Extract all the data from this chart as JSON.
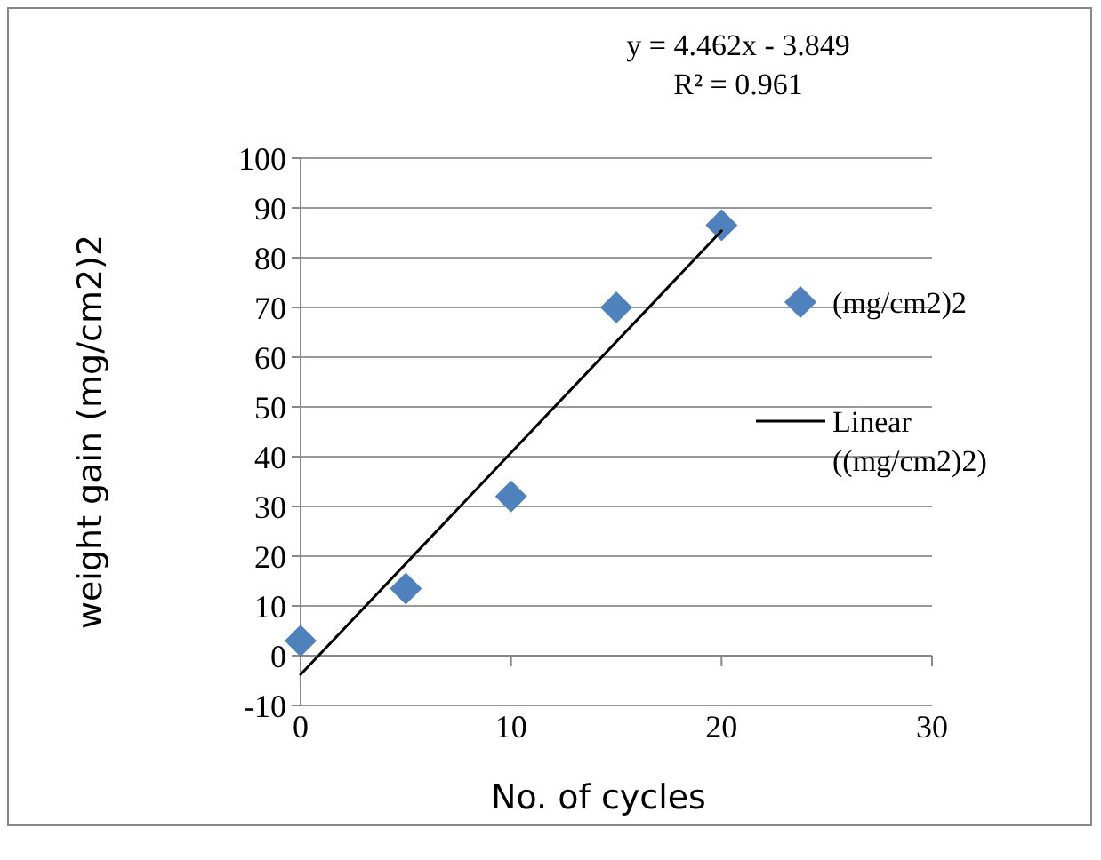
{
  "chart_data": {
    "type": "scatter",
    "xlabel": "No. of cycles",
    "ylabel": "weight gain (mg/cm2)2",
    "annotations": [
      "y = 4.462x - 3.849",
      "R² = 0.961"
    ],
    "series": [
      {
        "name": "(mg/cm2)2",
        "color": "#4f81bd",
        "x": [
          0,
          5,
          10,
          15,
          20
        ],
        "values": [
          3,
          13.5,
          32,
          70,
          86.5
        ],
        "marker": "diamond"
      },
      {
        "name": "Linear ((mg/cm2)2)",
        "type": "line",
        "color": "#000000",
        "x": [
          0,
          20
        ],
        "values": [
          -3.8,
          85.4
        ],
        "marker": "none",
        "line_style": "solid"
      }
    ],
    "xlim": [
      0,
      30
    ],
    "xticks": [
      0,
      10,
      20,
      30
    ],
    "ylim": [
      -10,
      100
    ],
    "yticks": [
      -10,
      0,
      10,
      20,
      30,
      40,
      50,
      60,
      70,
      80,
      90,
      100
    ],
    "grid": "y",
    "legend": "right"
  }
}
